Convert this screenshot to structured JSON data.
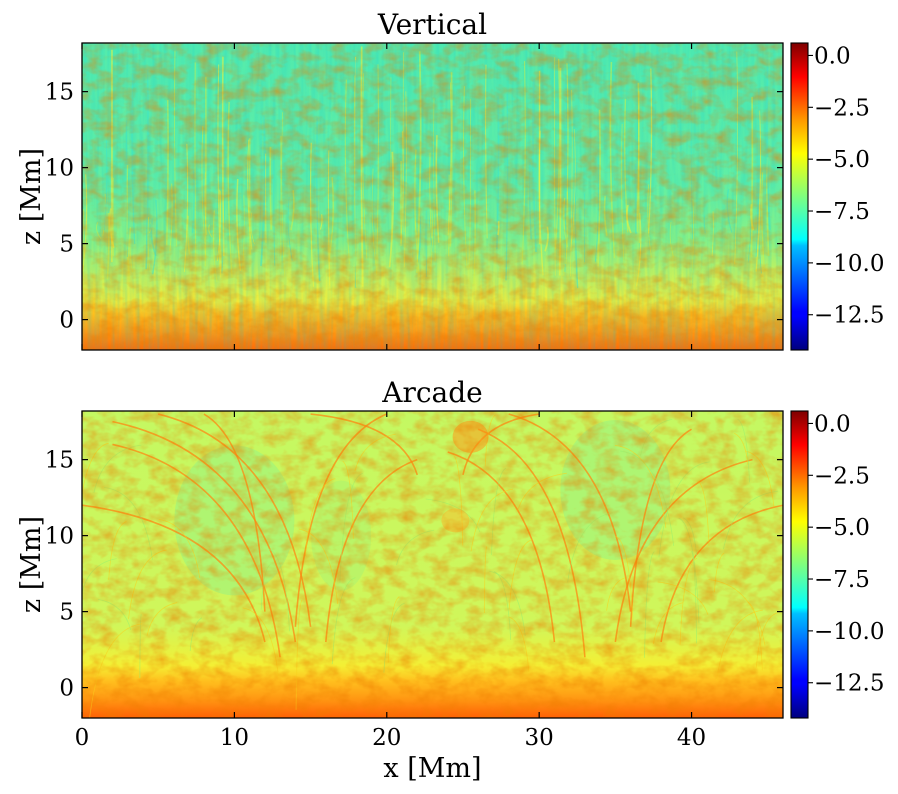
{
  "chart_data": [
    {
      "type": "heatmap",
      "title": "Vertical",
      "xlabel": "",
      "ylabel": "z [Mm]",
      "xlim": [
        0,
        46
      ],
      "ylim": [
        -2,
        18.2
      ],
      "xticks": [
        0,
        10,
        20,
        30,
        40
      ],
      "xtick_labels": [],
      "yticks": [
        0,
        5,
        10,
        15
      ],
      "ytick_labels": [
        "0",
        "5",
        "10",
        "15"
      ],
      "colorbar": {
        "ticks": [
          0.0,
          -2.5,
          -5.0,
          -7.5,
          -10.0,
          -12.5
        ],
        "tick_labels": [
          "0.0",
          "−2.5",
          "−5.0",
          "−7.5",
          "−10.0",
          "−12.5"
        ],
        "vmin": -14.2,
        "vmax": 0.6,
        "colormap": "jet"
      },
      "description": "Turbulent red-orange layer (values ~ -1 to -3) below z~2 Mm; mostly cyan-green (~ -6 to -7) vertical streaks above."
    },
    {
      "type": "heatmap",
      "title": "Arcade",
      "xlabel": "x [Mm]",
      "ylabel": "z [Mm]",
      "xlim": [
        0,
        46
      ],
      "ylim": [
        -2,
        18.2
      ],
      "xticks": [
        0,
        10,
        20,
        30,
        40
      ],
      "xtick_labels": [
        "0",
        "10",
        "20",
        "30",
        "40"
      ],
      "yticks": [
        0,
        5,
        10,
        15
      ],
      "ytick_labels": [
        "0",
        "5",
        "10",
        "15"
      ],
      "colorbar": {
        "ticks": [
          0.0,
          -2.5,
          -5.0,
          -7.5,
          -10.0,
          -12.5
        ],
        "tick_labels": [
          "0.0",
          "−2.5",
          "−5.0",
          "−7.5",
          "−10.0",
          "−12.5"
        ],
        "vmin": -14.2,
        "vmax": 0.6,
        "colormap": "jet"
      },
      "description": "Turbulent red-orange layer below z~2 Mm; yellow-green (~ -5 to -6) arcade loop structures above with arcs footed near x~14 and x~35 Mm."
    }
  ],
  "colors": {
    "jet": [
      "#00007f",
      "#0000ff",
      "#007fff",
      "#00ffff",
      "#7fff7f",
      "#ffff00",
      "#ff7f00",
      "#ff0000",
      "#7f0000"
    ],
    "vertical_bg": "#5cf0a6",
    "arcade_bg": "#c8f860",
    "photosphere": "#ff8a10"
  }
}
